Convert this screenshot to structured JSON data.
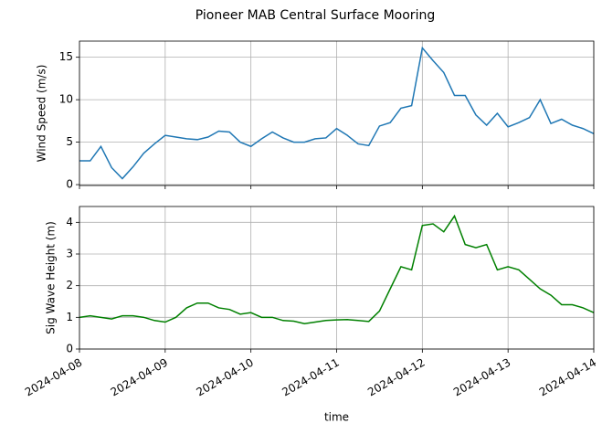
{
  "title": "Pioneer MAB Central Surface Mooring",
  "chart_data": [
    {
      "type": "line",
      "ylabel": "Wind Speed (m/s)",
      "x": [
        "2024-04-08T00:00",
        "2024-04-08T03:00",
        "2024-04-08T06:00",
        "2024-04-08T09:00",
        "2024-04-08T12:00",
        "2024-04-08T15:00",
        "2024-04-08T18:00",
        "2024-04-08T21:00",
        "2024-04-09T00:00",
        "2024-04-09T03:00",
        "2024-04-09T06:00",
        "2024-04-09T09:00",
        "2024-04-09T12:00",
        "2024-04-09T15:00",
        "2024-04-09T18:00",
        "2024-04-09T21:00",
        "2024-04-10T00:00",
        "2024-04-10T03:00",
        "2024-04-10T06:00",
        "2024-04-10T09:00",
        "2024-04-10T12:00",
        "2024-04-10T15:00",
        "2024-04-10T18:00",
        "2024-04-10T21:00",
        "2024-04-11T00:00",
        "2024-04-11T03:00",
        "2024-04-11T06:00",
        "2024-04-11T09:00",
        "2024-04-11T12:00",
        "2024-04-11T15:00",
        "2024-04-11T18:00",
        "2024-04-11T21:00",
        "2024-04-12T00:00",
        "2024-04-12T03:00",
        "2024-04-12T06:00",
        "2024-04-12T09:00",
        "2024-04-12T12:00",
        "2024-04-12T15:00",
        "2024-04-12T18:00",
        "2024-04-12T21:00",
        "2024-04-13T00:00",
        "2024-04-13T03:00",
        "2024-04-13T06:00",
        "2024-04-13T09:00",
        "2024-04-13T12:00",
        "2024-04-13T15:00",
        "2024-04-13T18:00",
        "2024-04-13T21:00",
        "2024-04-14T00:00"
      ],
      "series": [
        {
          "name": "Wind Speed",
          "color": "#1f77b4",
          "values": [
            2.8,
            2.8,
            4.5,
            2.0,
            0.7,
            2.1,
            3.7,
            4.8,
            5.8,
            5.6,
            5.4,
            5.3,
            5.6,
            6.3,
            6.2,
            5.0,
            4.5,
            5.4,
            6.2,
            5.5,
            5.0,
            5.0,
            5.4,
            5.5,
            6.6,
            5.8,
            4.8,
            4.6,
            6.9,
            7.3,
            9.0,
            9.3,
            16.1,
            14.6,
            13.2,
            10.5,
            10.5,
            8.2,
            7.0,
            8.4,
            6.8,
            7.3,
            7.9,
            10.0,
            7.2,
            7.7,
            7.0,
            6.6,
            6.0
          ]
        }
      ],
      "ylim": [
        -0.1,
        16.9
      ],
      "yticks": [
        0,
        5,
        10,
        15
      ],
      "grid": true
    },
    {
      "type": "line",
      "ylabel": "Sig Wave Height (m)",
      "xlabel": "time",
      "x": [
        "2024-04-08T00:00",
        "2024-04-08T03:00",
        "2024-04-08T06:00",
        "2024-04-08T09:00",
        "2024-04-08T12:00",
        "2024-04-08T15:00",
        "2024-04-08T18:00",
        "2024-04-08T21:00",
        "2024-04-09T00:00",
        "2024-04-09T03:00",
        "2024-04-09T06:00",
        "2024-04-09T09:00",
        "2024-04-09T12:00",
        "2024-04-09T15:00",
        "2024-04-09T18:00",
        "2024-04-09T21:00",
        "2024-04-10T00:00",
        "2024-04-10T03:00",
        "2024-04-10T06:00",
        "2024-04-10T09:00",
        "2024-04-10T12:00",
        "2024-04-10T15:00",
        "2024-04-10T18:00",
        "2024-04-10T21:00",
        "2024-04-11T00:00",
        "2024-04-11T03:00",
        "2024-04-11T06:00",
        "2024-04-11T09:00",
        "2024-04-11T12:00",
        "2024-04-11T15:00",
        "2024-04-11T18:00",
        "2024-04-11T21:00",
        "2024-04-12T00:00",
        "2024-04-12T03:00",
        "2024-04-12T06:00",
        "2024-04-12T09:00",
        "2024-04-12T12:00",
        "2024-04-12T15:00",
        "2024-04-12T18:00",
        "2024-04-12T21:00",
        "2024-04-13T00:00",
        "2024-04-13T03:00",
        "2024-04-13T06:00",
        "2024-04-13T09:00",
        "2024-04-13T12:00",
        "2024-04-13T15:00",
        "2024-04-13T18:00",
        "2024-04-13T21:00",
        "2024-04-14T00:00"
      ],
      "series": [
        {
          "name": "Sig Wave Height",
          "color": "#008000",
          "values": [
            1.0,
            1.05,
            1.0,
            0.95,
            1.05,
            1.05,
            1.0,
            0.9,
            0.85,
            1.0,
            1.3,
            1.45,
            1.45,
            1.3,
            1.25,
            1.1,
            1.15,
            1.0,
            1.0,
            0.9,
            0.88,
            0.8,
            0.85,
            0.9,
            0.92,
            0.93,
            0.9,
            0.87,
            1.2,
            1.9,
            2.6,
            2.5,
            3.9,
            3.95,
            3.7,
            4.2,
            3.3,
            3.2,
            3.3,
            2.5,
            2.6,
            2.5,
            2.2,
            1.9,
            1.7,
            1.4,
            1.4,
            1.3,
            1.15
          ]
        }
      ],
      "xlim": [
        "2024-04-08",
        "2024-04-14"
      ],
      "xticks": [
        "2024-04-08",
        "2024-04-09",
        "2024-04-10",
        "2024-04-11",
        "2024-04-12",
        "2024-04-13",
        "2024-04-14"
      ],
      "ylim": [
        0,
        4.5
      ],
      "yticks": [
        0,
        1,
        2,
        3,
        4
      ],
      "grid": true
    }
  ]
}
